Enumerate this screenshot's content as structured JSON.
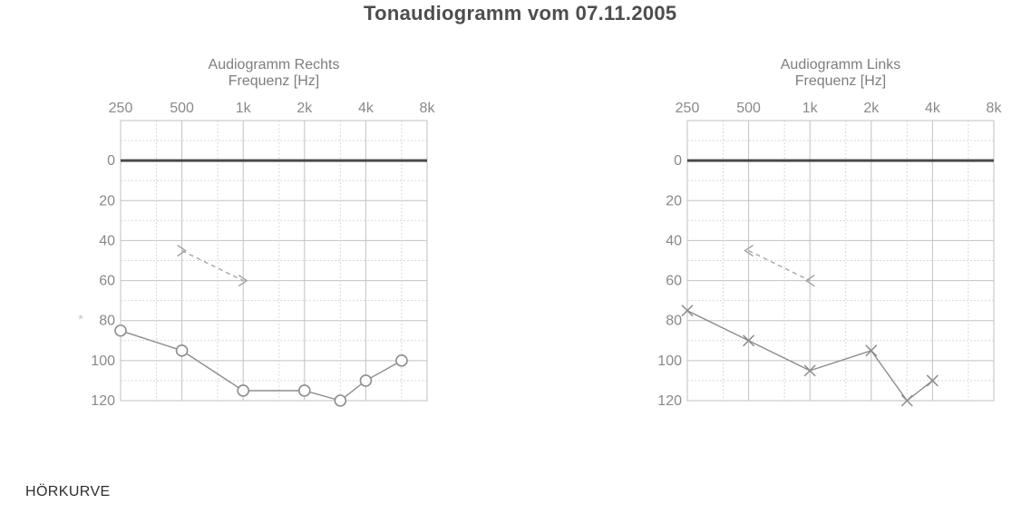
{
  "page": {
    "title": "Tonaudiogramm vom 07.11.2005",
    "footer_label": "HÖRKURVE",
    "faint_mark": "*"
  },
  "colors": {
    "background": "#ffffff",
    "title_text": "#4d4d4d",
    "axis_text": "#898989",
    "grid_major": "#c2c2c2",
    "grid_minor": "#d9d9d9",
    "zero_line": "#4a4a4a",
    "air_curve": "#8d8d8d",
    "bone_curve": "#a6a6a6",
    "footer_text": "#2e2e2e"
  },
  "chart_data": [
    {
      "type": "line",
      "title": "Audiogramm Rechts",
      "xlabel": "Frequenz [Hz]",
      "x_scale": "log2-octaves",
      "x_ticks": [
        {
          "label": "250",
          "hz": 250
        },
        {
          "label": "500",
          "hz": 500
        },
        {
          "label": "1k",
          "hz": 1000
        },
        {
          "label": "2k",
          "hz": 2000
        },
        {
          "label": "4k",
          "hz": 4000
        },
        {
          "label": "8k",
          "hz": 8000
        }
      ],
      "x_minor_hz": [
        375,
        750,
        1500,
        3000,
        6000
      ],
      "ylim": [
        -20,
        120
      ],
      "y_ticks": [
        0,
        20,
        40,
        60,
        80,
        100,
        120
      ],
      "y_step_minor": 10,
      "y_unit": "dB",
      "grid": true,
      "legend": "none",
      "series": [
        {
          "name": "O",
          "marker": "circle",
          "line": "solid",
          "points": [
            [
              250,
              85
            ],
            [
              500,
              95
            ],
            [
              1000,
              115
            ],
            [
              2000,
              115
            ],
            [
              3000,
              120
            ],
            [
              4000,
              110
            ],
            [
              6000,
              100
            ]
          ]
        },
        {
          "name": ">",
          "marker": "chevron-right",
          "line": "dashed",
          "points": [
            [
              500,
              45
            ],
            [
              1000,
              60
            ]
          ]
        }
      ]
    },
    {
      "type": "line",
      "title": "Audiogramm Links",
      "xlabel": "Frequenz [Hz]",
      "x_scale": "log2-octaves",
      "x_ticks": [
        {
          "label": "250",
          "hz": 250
        },
        {
          "label": "500",
          "hz": 500
        },
        {
          "label": "1k",
          "hz": 1000
        },
        {
          "label": "2k",
          "hz": 2000
        },
        {
          "label": "4k",
          "hz": 4000
        },
        {
          "label": "8k",
          "hz": 8000
        }
      ],
      "x_minor_hz": [
        375,
        750,
        1500,
        3000,
        6000
      ],
      "ylim": [
        -20,
        120
      ],
      "y_ticks": [
        0,
        20,
        40,
        60,
        80,
        100,
        120
      ],
      "y_step_minor": 10,
      "y_unit": "dB",
      "grid": true,
      "legend": "none",
      "series": [
        {
          "name": "X",
          "marker": "x",
          "line": "solid",
          "points": [
            [
              250,
              75
            ],
            [
              500,
              90
            ],
            [
              1000,
              105
            ],
            [
              2000,
              95
            ],
            [
              3000,
              120
            ],
            [
              4000,
              110
            ]
          ]
        },
        {
          "name": "<",
          "marker": "chevron-left",
          "line": "dashed",
          "points": [
            [
              500,
              45
            ],
            [
              1000,
              60
            ]
          ]
        }
      ]
    }
  ]
}
